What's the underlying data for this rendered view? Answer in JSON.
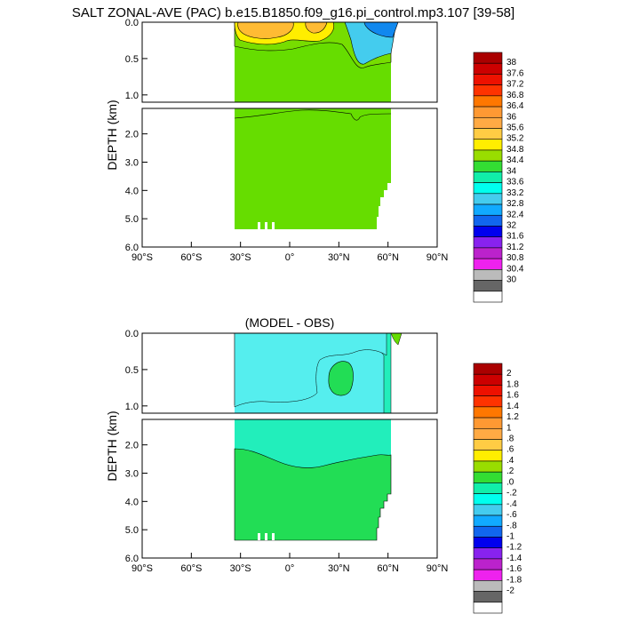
{
  "title": "SALT ZONAL-AVE (PAC) b.e15.B1850.f09_g16.pi_control.mp3.107 [39-58]",
  "colors": {
    "top_fill_green": "#66dd00",
    "top_fill_yellow": "#ffee00",
    "top_fill_orange": "#ffbb33",
    "top_fill_cyan": "#44ccee",
    "top_fill_blue": "#1188ee",
    "diff_fill_cyan": "#55eeee",
    "diff_fill_teal": "#22eebb",
    "diff_fill_green": "#22dd55",
    "diff_fill_lightgreen": "#66dd00"
  },
  "chart_data": [
    {
      "type": "heatmap",
      "title": "SALT ZONAL-AVE (PAC) b.e15.B1850.f09_g16.pi_control.mp3.107 [39-58]",
      "xlabel": "",
      "ylabel": "DEPTH (km)",
      "x_ticks": [
        "90°S",
        "60°S",
        "30°S",
        "0°",
        "30°N",
        "60°N",
        "90°N"
      ],
      "y_ticks_upper": [
        "0.0",
        "0.5",
        "1.0"
      ],
      "y_ticks_lower": [
        "2.0",
        "3.0",
        "4.0",
        "5.0",
        "6.0"
      ],
      "xlim": [
        -90,
        90
      ],
      "ylim": [
        0,
        6
      ],
      "colorbar_labels": [
        "38",
        "37.6",
        "37.2",
        "36.8",
        "36.4",
        "36",
        "35.6",
        "35.2",
        "34.8",
        "34.4",
        "34",
        "33.6",
        "33.2",
        "32.8",
        "32.4",
        "32",
        "31.6",
        "31.2",
        "30.8",
        "30.4",
        "30"
      ],
      "colorbar_colors": [
        "#aa0000",
        "#cc0000",
        "#ee1100",
        "#ff3300",
        "#ff7700",
        "#ff9933",
        "#ffaa44",
        "#ffcc44",
        "#ffee00",
        "#99dd00",
        "#33dd33",
        "#11eeaa",
        "#00ffee",
        "#44ccee",
        "#11aaff",
        "#1166ee",
        "#0000ee",
        "#8822ee",
        "#bb22cc",
        "#ee22ee",
        "#bbbbbb",
        "#666666",
        "#ffffff"
      ]
    },
    {
      "type": "heatmap",
      "title": "(MODEL - OBS)",
      "xlabel": "",
      "ylabel": "DEPTH (km)",
      "x_ticks": [
        "90°S",
        "60°S",
        "30°S",
        "0°",
        "30°N",
        "60°N",
        "90°N"
      ],
      "y_ticks_upper": [
        "0.0",
        "0.5",
        "1.0"
      ],
      "y_ticks_lower": [
        "2.0",
        "3.0",
        "4.0",
        "5.0",
        "6.0"
      ],
      "xlim": [
        -90,
        90
      ],
      "ylim": [
        0,
        6
      ],
      "colorbar_labels": [
        "2",
        "1.8",
        "1.6",
        "1.4",
        "1.2",
        "1",
        ".8",
        ".6",
        ".4",
        ".2",
        ".0",
        "-.2",
        "-.4",
        "-.6",
        "-.8",
        "-1",
        "-1.2",
        "-1.4",
        "-1.6",
        "-1.8",
        "-2"
      ],
      "colorbar_colors": [
        "#aa0000",
        "#cc0000",
        "#ee1100",
        "#ff3300",
        "#ff7700",
        "#ff9933",
        "#ffaa44",
        "#ffcc44",
        "#ffee00",
        "#99dd00",
        "#33dd33",
        "#11eeaa",
        "#00ffee",
        "#44ccee",
        "#11aaff",
        "#1166ee",
        "#0000ee",
        "#8822ee",
        "#bb22cc",
        "#ee22ee",
        "#bbbbbb",
        "#666666",
        "#ffffff"
      ]
    }
  ]
}
